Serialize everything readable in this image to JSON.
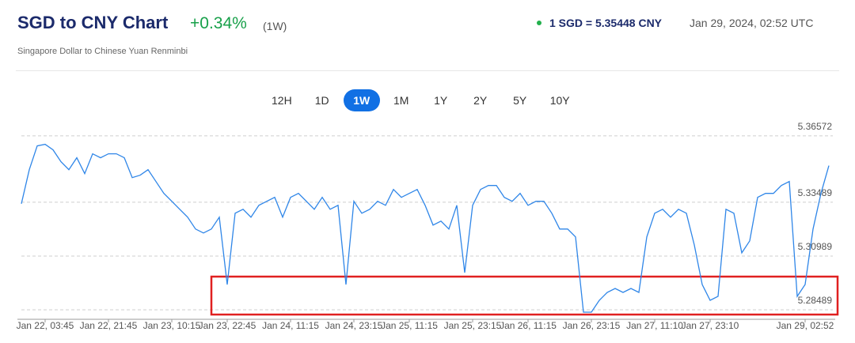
{
  "header": {
    "title": "SGD to CNY Chart",
    "change": "+0.34%",
    "period": "(1W)",
    "subtitle": "Singapore Dollar to Chinese Yuan Renminbi",
    "rate": "1 SGD = 5.35448 CNY",
    "timestamp": "Jan 29, 2024, 02:52 UTC"
  },
  "range_buttons": {
    "labels": [
      "12H",
      "1D",
      "1W",
      "1M",
      "1Y",
      "2Y",
      "5Y",
      "10Y"
    ],
    "active": "1W"
  },
  "chart_data": {
    "type": "line",
    "color": "#2f86e8",
    "categories": [
      null,
      null,
      null,
      "Jan 22, 03:45",
      null,
      null,
      null,
      null,
      null,
      null,
      null,
      "Jan 22, 21:45",
      null,
      null,
      null,
      null,
      null,
      null,
      null,
      "Jan 23, 10:15",
      null,
      null,
      null,
      null,
      null,
      null,
      "Jan 23, 22:45",
      null,
      null,
      null,
      null,
      null,
      null,
      null,
      "Jan 24, 11:15",
      null,
      null,
      null,
      null,
      null,
      null,
      null,
      "Jan 24, 23:15",
      null,
      null,
      null,
      null,
      null,
      null,
      "Jan 25, 11:15",
      null,
      null,
      null,
      null,
      null,
      null,
      null,
      "Jan 25, 23:15",
      null,
      null,
      null,
      null,
      null,
      null,
      "Jan 26, 11:15",
      null,
      null,
      null,
      null,
      null,
      null,
      null,
      "Jan 26, 23:15",
      null,
      null,
      null,
      null,
      null,
      null,
      null,
      "Jan 27, 11:10",
      null,
      null,
      null,
      null,
      null,
      null,
      "Jan 27, 23:10",
      null,
      null,
      null,
      null,
      null,
      null,
      null,
      null,
      null,
      null,
      null,
      "Jan 29, 02:52",
      null,
      null,
      null
    ],
    "values": [
      5.3342,
      5.35003,
      5.36107,
      5.3618,
      5.35923,
      5.35371,
      5.35003,
      5.35555,
      5.34819,
      5.35739,
      5.35555,
      5.35739,
      5.35739,
      5.35555,
      5.34635,
      5.34745,
      5.35003,
      5.34451,
      5.33899,
      5.33531,
      5.33163,
      5.32795,
      5.32243,
      5.32059,
      5.32243,
      5.32795,
      5.29667,
      5.32979,
      5.33163,
      5.32795,
      5.33347,
      5.33531,
      5.33715,
      5.32795,
      5.33715,
      5.33899,
      5.33531,
      5.33163,
      5.33715,
      5.33163,
      5.33347,
      5.29667,
      5.33531,
      5.32979,
      5.33163,
      5.33531,
      5.33347,
      5.34083,
      5.33715,
      5.33899,
      5.34083,
      5.33347,
      5.32427,
      5.32611,
      5.32243,
      5.33347,
      5.30219,
      5.33347,
      5.34083,
      5.34267,
      5.34267,
      5.33715,
      5.33531,
      5.33899,
      5.33347,
      5.33531,
      5.33531,
      5.32979,
      5.32243,
      5.32243,
      5.31875,
      5.28379,
      5.28379,
      5.28931,
      5.29299,
      5.29483,
      5.29299,
      5.29483,
      5.29299,
      5.31875,
      5.32979,
      5.33163,
      5.32795,
      5.33163,
      5.32979,
      5.31507,
      5.29667,
      5.28931,
      5.29115,
      5.33163,
      5.32979,
      5.31139,
      5.31691,
      5.33715,
      5.33899,
      5.33899,
      5.34267,
      5.34451,
      5.29115,
      5.29667,
      5.32243,
      5.33899,
      5.35187
    ],
    "ylim": [
      5.2805,
      5.3701
    ],
    "yticks": [
      5.28489,
      5.30989,
      5.33489,
      5.36572
    ],
    "grid": true
  }
}
